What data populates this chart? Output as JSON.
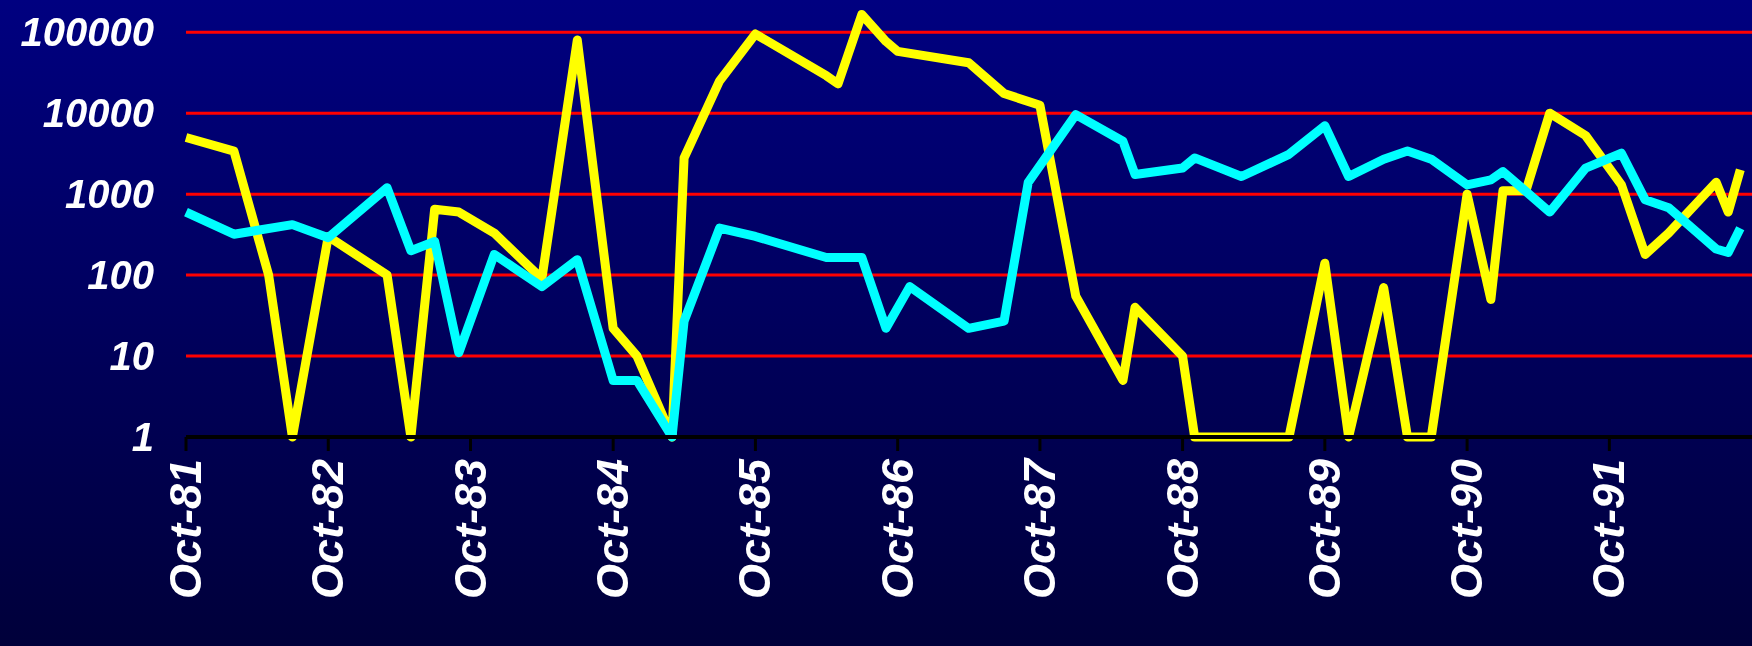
{
  "chart_data": {
    "type": "line",
    "log": "y",
    "grid": "y",
    "line_style": "solid",
    "marker": "none",
    "xlim": [
      "1981-10",
      "1992-10"
    ],
    "ylim": [
      1,
      250000
    ],
    "yticks": [
      1,
      10,
      100,
      1000,
      10000,
      100000
    ],
    "xticks": [
      {
        "value": "1981-10",
        "label": "Oct-81"
      },
      {
        "value": "1982-10",
        "label": "Oct-82"
      },
      {
        "value": "1983-10",
        "label": "Oct-83"
      },
      {
        "value": "1984-10",
        "label": "Oct-84"
      },
      {
        "value": "1985-10",
        "label": "Oct-85"
      },
      {
        "value": "1986-10",
        "label": "Oct-86"
      },
      {
        "value": "1987-10",
        "label": "Oct-87"
      },
      {
        "value": "1988-10",
        "label": "Oct-88"
      },
      {
        "value": "1989-10",
        "label": "Oct-89"
      },
      {
        "value": "1990-10",
        "label": "Oct-90"
      },
      {
        "value": "1991-10",
        "label": "Oct-91"
      }
    ],
    "series": [
      {
        "color": "#ffff00",
        "x": [
          "1981-10",
          "1982-02",
          "1982-05",
          "1982-07",
          "1982-10",
          "1983-03",
          "1983-05",
          "1983-07",
          "1983-09",
          "1983-12",
          "1984-04",
          "1984-07",
          "1984-10",
          "1984-12",
          "1985-03",
          "1985-04",
          "1985-07",
          "1985-10",
          "1986-04",
          "1986-05",
          "1986-07",
          "1986-09",
          "1986-10",
          "1987-04",
          "1987-07",
          "1987-10",
          "1988-01",
          "1988-05",
          "1988-06",
          "1988-10",
          "1988-11",
          "1989-03",
          "1989-07",
          "1989-10",
          "1989-12",
          "1990-03",
          "1990-05",
          "1990-07",
          "1990-10",
          "1990-12",
          "1991-01",
          "1991-03",
          "1991-05",
          "1991-08",
          "1991-11",
          "1992-01",
          "1992-03",
          "1992-07",
          "1992-08",
          "1992-09"
        ],
        "values": [
          5000,
          3400,
          100,
          1,
          300,
          100,
          1,
          650,
          600,
          330,
          90,
          80000,
          22,
          10,
          1,
          2800,
          25000,
          95000,
          29000,
          23000,
          166000,
          77000,
          58000,
          42000,
          17500,
          12500,
          55,
          5,
          40,
          10,
          1,
          1,
          1,
          140,
          1,
          70,
          1,
          1,
          1000,
          50,
          1100,
          1100,
          10000,
          5300,
          1300,
          180,
          330,
          1400,
          600,
          2000
        ]
      },
      {
        "color": "#00ffff",
        "x": [
          "1981-10",
          "1982-02",
          "1982-07",
          "1982-10",
          "1983-03",
          "1983-05",
          "1983-07",
          "1983-09",
          "1983-12",
          "1984-04",
          "1984-07",
          "1984-10",
          "1984-12",
          "1985-03",
          "1985-04",
          "1985-07",
          "1985-10",
          "1986-04",
          "1986-05",
          "1986-07",
          "1986-09",
          "1986-11",
          "1987-04",
          "1987-07",
          "1987-09",
          "1988-01",
          "1988-05",
          "1988-06",
          "1988-10",
          "1988-11",
          "1989-03",
          "1989-07",
          "1989-10",
          "1989-12",
          "1990-03",
          "1990-05",
          "1990-07",
          "1990-10",
          "1990-12",
          "1991-01",
          "1991-05",
          "1991-08",
          "1991-11",
          "1992-01",
          "1992-03",
          "1992-07",
          "1992-08",
          "1992-09"
        ],
        "values": [
          600,
          320,
          420,
          290,
          1200,
          200,
          260,
          11,
          180,
          72,
          155,
          5,
          5,
          1,
          27,
          380,
          300,
          165,
          165,
          165,
          22,
          72,
          22,
          27,
          1400,
          9600,
          4500,
          1750,
          2100,
          2800,
          1650,
          3100,
          7000,
          1650,
          2700,
          3400,
          2700,
          1300,
          1500,
          1900,
          600,
          2100,
          3200,
          850,
          680,
          210,
          190,
          380
        ]
      }
    ]
  }
}
